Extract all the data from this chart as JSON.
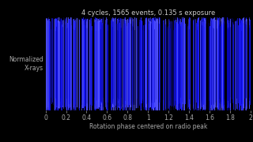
{
  "title": "4 cycles, 1565 events, 0.135 s exposure",
  "xlabel": "Rotation phase centered on radio peak",
  "ylabel": "Normalized\nX-rays",
  "xlim": [
    0,
    2
  ],
  "ylim": [
    0,
    1
  ],
  "xticks": [
    0,
    0.2,
    0.4,
    0.6,
    0.8,
    1.0,
    1.2,
    1.4,
    1.6,
    1.8,
    2.0
  ],
  "background_color": "#000000",
  "plot_bg_color": "#000000",
  "bar_color_dense": "#1a1aff",
  "bar_color_bright": "#5555ff",
  "bar_color_dark": "#0000aa",
  "title_color": "#cccccc",
  "label_color": "#aaaaaa",
  "tick_color": "#aaaaaa",
  "n_dense": 2000,
  "seed": 99
}
